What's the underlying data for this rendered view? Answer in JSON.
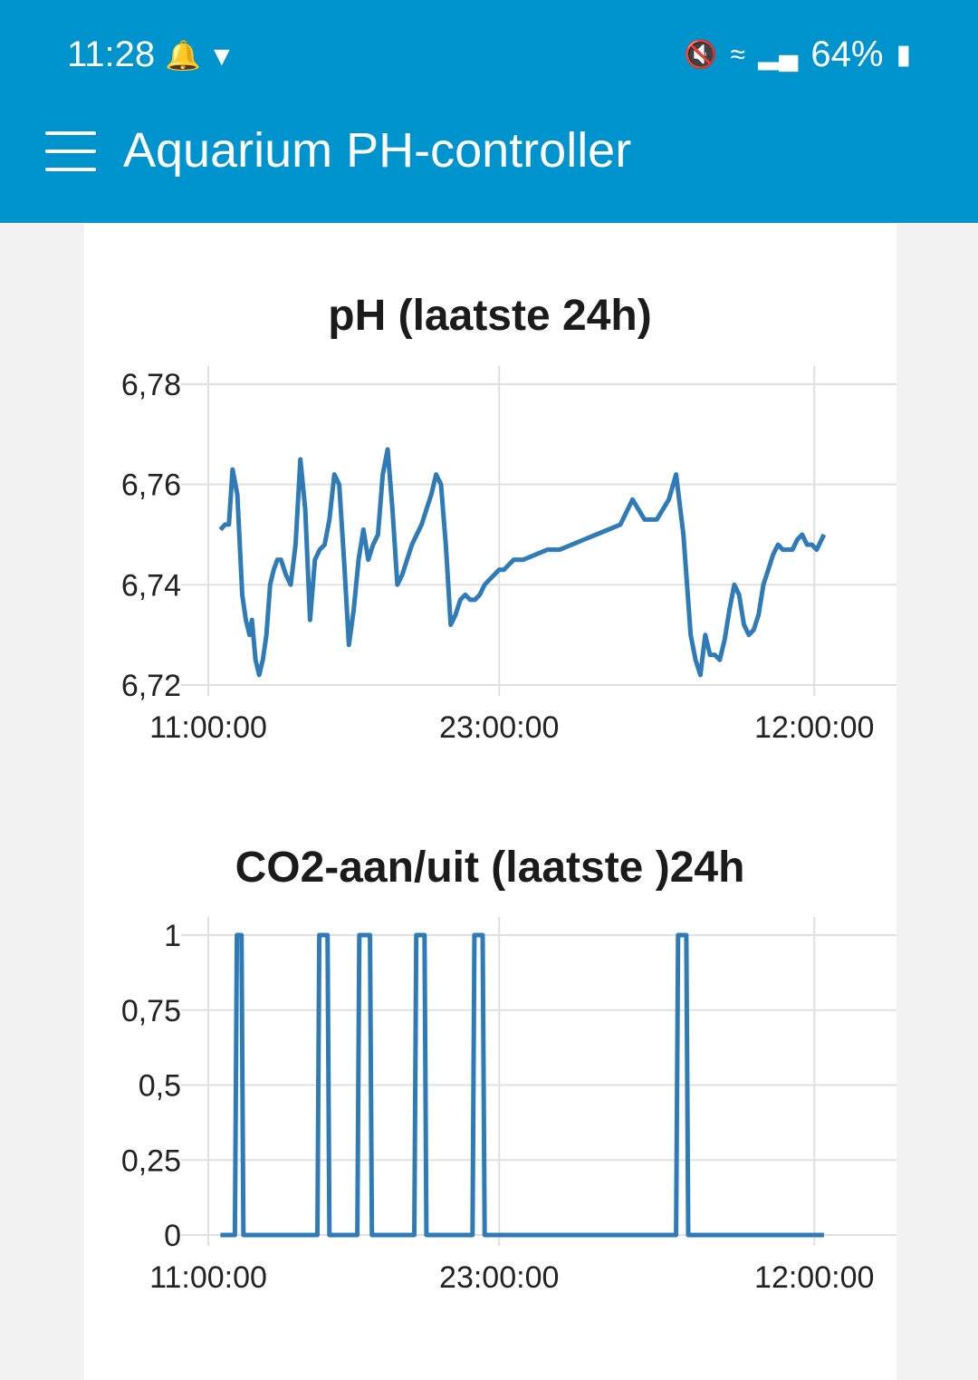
{
  "status_bar": {
    "time": "11:28",
    "battery": "64%",
    "icons": [
      "bell-icon",
      "shield-icon",
      "mute-icon",
      "wifi-icon",
      "signal-icon",
      "battery-icon"
    ]
  },
  "app_bar": {
    "title": "Aquarium PH-controller",
    "menu_icon": "hamburger-menu-icon"
  },
  "colors": {
    "app_bar": "#0094ce",
    "series": "#2f7bb7",
    "grid": "#e0e0e0"
  },
  "chart_data": [
    {
      "type": "line",
      "title": "pH (laatste 24h)",
      "x_ticks": [
        "11:00:00",
        "23:00:00",
        "12:00:00"
      ],
      "y_ticks": [
        "6,72",
        "6,74",
        "6,76",
        "6,78"
      ],
      "ylim": [
        6.72,
        6.78
      ],
      "x_range_hours": [
        0,
        26
      ],
      "series": [
        {
          "x": [
            0.5,
            0.7,
            0.85,
            1.0,
            1.2,
            1.4,
            1.55,
            1.7,
            1.8,
            1.95,
            2.1,
            2.25,
            2.4,
            2.55,
            2.7,
            2.85,
            3.0,
            3.2,
            3.4,
            3.6,
            3.8,
            4.0,
            4.2,
            4.4,
            4.6,
            4.8,
            5.0,
            5.2,
            5.4,
            5.6,
            5.8,
            6.0,
            6.2,
            6.4,
            6.6,
            6.8,
            7.0,
            7.2,
            7.4,
            7.6,
            7.8,
            8.0,
            8.2,
            8.4,
            8.6,
            8.8,
            9.0,
            9.2,
            9.4,
            9.6,
            9.8,
            10.0,
            10.2,
            10.4,
            10.6,
            10.8,
            11.0,
            11.2,
            11.4,
            11.6,
            11.8,
            12.0,
            12.2,
            12.4,
            12.6,
            12.8,
            13.0,
            13.5,
            14.0,
            14.5,
            15.0,
            15.5,
            16.0,
            16.5,
            17.0,
            17.5,
            18.0,
            18.5,
            19.0,
            19.3,
            19.6,
            19.9,
            20.1,
            20.3,
            20.5,
            20.7,
            20.9,
            21.1,
            21.3,
            21.5,
            21.7,
            21.9,
            22.1,
            22.3,
            22.5,
            22.7,
            22.9,
            23.1,
            23.3,
            23.5,
            23.7,
            23.9,
            24.1,
            24.3,
            24.5,
            24.7,
            24.9,
            25.1,
            25.4
          ],
          "y": [
            6.751,
            6.752,
            6.752,
            6.763,
            6.758,
            6.738,
            6.733,
            6.73,
            6.733,
            6.725,
            6.722,
            6.725,
            6.73,
            6.74,
            6.743,
            6.745,
            6.745,
            6.742,
            6.74,
            6.748,
            6.765,
            6.755,
            6.733,
            6.745,
            6.747,
            6.748,
            6.753,
            6.762,
            6.76,
            6.745,
            6.728,
            6.735,
            6.745,
            6.751,
            6.745,
            6.748,
            6.75,
            6.762,
            6.767,
            6.755,
            6.74,
            6.742,
            6.745,
            6.748,
            6.75,
            6.752,
            6.755,
            6.758,
            6.762,
            6.76,
            6.748,
            6.732,
            6.734,
            6.737,
            6.738,
            6.737,
            6.737,
            6.738,
            6.74,
            6.741,
            6.742,
            6.743,
            6.743,
            6.744,
            6.745,
            6.745,
            6.745,
            6.746,
            6.747,
            6.747,
            6.748,
            6.749,
            6.75,
            6.751,
            6.752,
            6.757,
            6.753,
            6.753,
            6.757,
            6.762,
            6.75,
            6.73,
            6.725,
            6.722,
            6.73,
            6.726,
            6.726,
            6.725,
            6.729,
            6.735,
            6.74,
            6.738,
            6.732,
            6.73,
            6.731,
            6.734,
            6.74,
            6.743,
            6.746,
            6.748,
            6.747,
            6.747,
            6.747,
            6.749,
            6.75,
            6.748,
            6.748,
            6.747,
            6.75
          ]
        }
      ]
    },
    {
      "type": "line",
      "title": "CO2-aan/uit (laatste )24h",
      "x_ticks": [
        "11:00:00",
        "23:00:00",
        "12:00:00"
      ],
      "y_ticks": [
        "0",
        "0,25",
        "0,5",
        "0,75",
        "1"
      ],
      "ylim": [
        0,
        1
      ],
      "x_range_hours": [
        0,
        26
      ],
      "on_intervals_hours": [
        [
          1.1,
          1.45
        ],
        [
          4.5,
          5.0
        ],
        [
          6.15,
          6.75
        ],
        [
          8.5,
          9.0
        ],
        [
          10.9,
          11.4
        ],
        [
          19.3,
          19.8
        ]
      ],
      "series_x_end_hours": 25.4
    }
  ]
}
